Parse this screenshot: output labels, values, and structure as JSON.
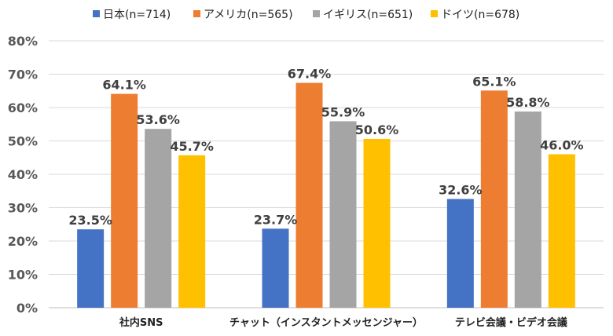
{
  "chart_data": {
    "type": "bar",
    "categories": [
      "社内SNS",
      "チャット（インスタントメッセンジャー）",
      "テレビ会議・ビデオ会議"
    ],
    "series": [
      {
        "name": "日本(n=714)",
        "color": "#4472C4",
        "values": [
          23.5,
          23.7,
          32.6
        ]
      },
      {
        "name": "アメリカ(n=565)",
        "color": "#ED7D31",
        "values": [
          64.1,
          67.4,
          65.1
        ]
      },
      {
        "name": "イギリス(n=651)",
        "color": "#A5A5A5",
        "values": [
          53.6,
          55.9,
          58.8
        ]
      },
      {
        "name": "ドイツ(n=678)",
        "color": "#FFC000",
        "values": [
          45.7,
          50.6,
          46.0
        ]
      }
    ],
    "ylim": [
      0,
      80
    ],
    "yticks": [
      "0%",
      "10%",
      "20%",
      "30%",
      "40%",
      "50%",
      "60%",
      "70%",
      "80%"
    ],
    "value_suffix": "%",
    "grid": true,
    "legend_position": "top"
  }
}
